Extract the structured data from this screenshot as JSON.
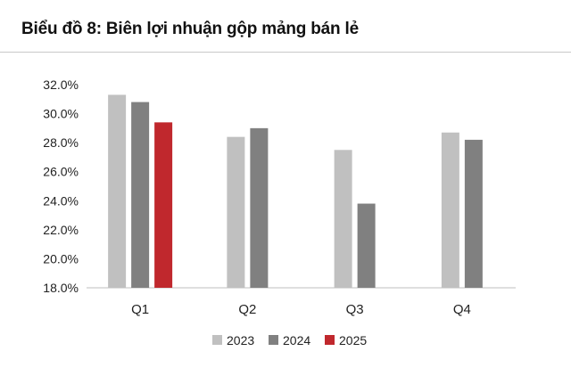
{
  "title": "Biểu đồ 8: Biên lợi nhuận gộp mảng bán lẻ",
  "chart_data": {
    "type": "bar",
    "categories": [
      "Q1",
      "Q2",
      "Q3",
      "Q4"
    ],
    "series": [
      {
        "name": "2023",
        "color": "#c0c0c0",
        "values": [
          31.3,
          28.4,
          27.5,
          28.7
        ]
      },
      {
        "name": "2024",
        "color": "#808080",
        "values": [
          30.8,
          29.0,
          23.8,
          28.2
        ]
      },
      {
        "name": "2025",
        "color": "#c0282d",
        "values": [
          29.4,
          null,
          null,
          null
        ]
      }
    ],
    "yticks": [
      "18.0%",
      "20.0%",
      "22.0%",
      "24.0%",
      "26.0%",
      "28.0%",
      "30.0%",
      "32.0%"
    ],
    "ylim": [
      18,
      32
    ],
    "ytick_step": 2,
    "legend_position": "bottom",
    "grid": false
  }
}
